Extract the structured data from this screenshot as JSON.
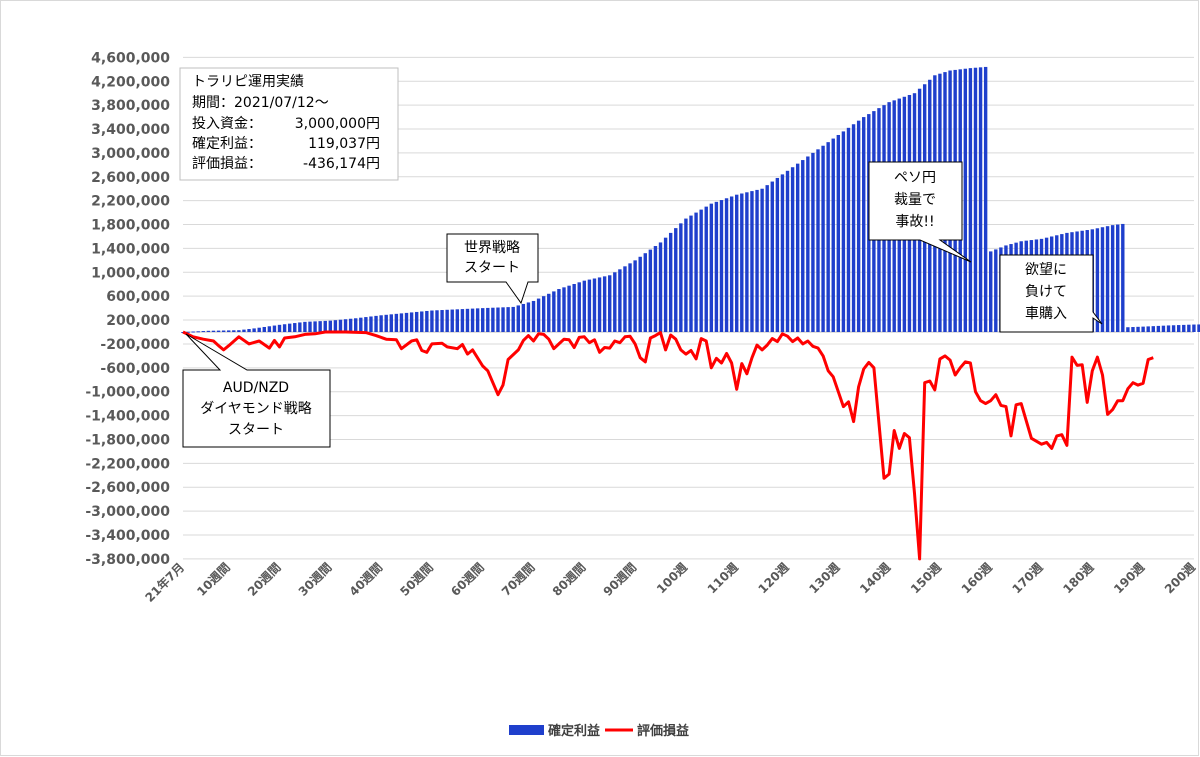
{
  "info_box": {
    "lines": [
      {
        "label": "トラリピ運用実績",
        "value": ""
      },
      {
        "label": "期間：2021/07/12～",
        "value": ""
      },
      {
        "label": "投入資金：",
        "value": "3,000,000円"
      },
      {
        "label": "確定利益：",
        "value": "119,037円"
      },
      {
        "label": "評価損益：",
        "value": "-436,174円"
      }
    ]
  },
  "annotations": [
    {
      "id": "audnzd",
      "lines": [
        "AUD/NZD",
        "ダイヤモンド戦略",
        "スタート"
      ],
      "week": 1
    },
    {
      "id": "sekai",
      "lines": [
        "世界戦略",
        "スタート"
      ],
      "week": 69
    },
    {
      "id": "peso",
      "lines": [
        "ペソ円",
        "裁量で",
        "事故!!"
      ],
      "week": 159
    },
    {
      "id": "car",
      "lines": [
        "欲望に",
        "負けて",
        "車購入"
      ],
      "week": 188
    }
  ],
  "chart_data": {
    "type": "bar+line",
    "title": "",
    "xlabel": "",
    "ylabel": "",
    "ylim": [
      -4000000,
      4600000
    ],
    "y_ticks": [
      4600000,
      4200000,
      3800000,
      3400000,
      3000000,
      2600000,
      2200000,
      1800000,
      1400000,
      1000000,
      600000,
      200000,
      -200000,
      -600000,
      -1000000,
      -1400000,
      -1800000,
      -2200000,
      -2600000,
      -3000000,
      -3400000,
      -3800000
    ],
    "y_tick_labels": [
      "4,600,000",
      "4,200,000",
      "3,800,000",
      "3,400,000",
      "3,000,000",
      "2,600,000",
      "2,200,000",
      "1,800,000",
      "1,400,000",
      "1,000,000",
      "600,000",
      "200,000",
      "-200,000",
      "-600,000",
      "-1,000,000",
      "-1,400,000",
      "-1,800,000",
      "-2,200,000",
      "-2,600,000",
      "-3,000,000",
      "-3,400,000",
      "-3,800,000"
    ],
    "x_tick_labels": [
      {
        "week": 1,
        "label": "21年7月"
      },
      {
        "week": 10,
        "label": "10週間"
      },
      {
        "week": 20,
        "label": "20週間"
      },
      {
        "week": 30,
        "label": "30週間"
      },
      {
        "week": 40,
        "label": "40週間"
      },
      {
        "week": 50,
        "label": "50週間"
      },
      {
        "week": 60,
        "label": "60週間"
      },
      {
        "week": 70,
        "label": "70週間"
      },
      {
        "week": 80,
        "label": "80週間"
      },
      {
        "week": 90,
        "label": "90週間"
      },
      {
        "week": 100,
        "label": "100週"
      },
      {
        "week": 110,
        "label": "110週"
      },
      {
        "week": 120,
        "label": "120週"
      },
      {
        "week": 130,
        "label": "130週"
      },
      {
        "week": 140,
        "label": "140週"
      },
      {
        "week": 150,
        "label": "150週"
      },
      {
        "week": 160,
        "label": "160週"
      },
      {
        "week": 170,
        "label": "170週"
      },
      {
        "week": 180,
        "label": "180週"
      },
      {
        "week": 190,
        "label": "190週"
      },
      {
        "week": 200,
        "label": "200週"
      }
    ],
    "legend_position": "bottom",
    "series": [
      {
        "name": "確定利益",
        "kind": "bar",
        "color": "#1f3fcc",
        "anchors": [
          [
            1,
            0
          ],
          [
            6,
            20000
          ],
          [
            12,
            30000
          ],
          [
            15,
            60000
          ],
          [
            20,
            120000
          ],
          [
            25,
            170000
          ],
          [
            30,
            190000
          ],
          [
            35,
            230000
          ],
          [
            40,
            280000
          ],
          [
            45,
            320000
          ],
          [
            50,
            360000
          ],
          [
            55,
            380000
          ],
          [
            60,
            400000
          ],
          [
            66,
            420000
          ],
          [
            70,
            520000
          ],
          [
            75,
            720000
          ],
          [
            80,
            860000
          ],
          [
            85,
            950000
          ],
          [
            90,
            1200000
          ],
          [
            95,
            1500000
          ],
          [
            100,
            1900000
          ],
          [
            105,
            2150000
          ],
          [
            110,
            2300000
          ],
          [
            115,
            2400000
          ],
          [
            120,
            2700000
          ],
          [
            125,
            3000000
          ],
          [
            130,
            3300000
          ],
          [
            135,
            3600000
          ],
          [
            140,
            3850000
          ],
          [
            145,
            4000000
          ],
          [
            149,
            4300000
          ],
          [
            152,
            4380000
          ],
          [
            156,
            4420000
          ],
          [
            159,
            4440000
          ],
          [
            160,
            1350000
          ],
          [
            163,
            1450000
          ],
          [
            166,
            1520000
          ],
          [
            170,
            1560000
          ],
          [
            175,
            1660000
          ],
          [
            180,
            1720000
          ],
          [
            184,
            1790000
          ],
          [
            186,
            1810000
          ],
          [
            187,
            80000
          ],
          [
            190,
            90000
          ],
          [
            195,
            110000
          ],
          [
            200,
            125000
          ],
          [
            204,
            130000
          ]
        ]
      },
      {
        "name": "評価損益",
        "kind": "line",
        "color": "#ff0000",
        "points": [
          [
            1,
            0
          ],
          [
            3,
            -80000
          ],
          [
            5,
            -120000
          ],
          [
            7,
            -150000
          ],
          [
            8,
            -230000
          ],
          [
            9,
            -300000
          ],
          [
            10,
            -230000
          ],
          [
            12,
            -80000
          ],
          [
            14,
            -200000
          ],
          [
            16,
            -150000
          ],
          [
            18,
            -270000
          ],
          [
            19,
            -140000
          ],
          [
            20,
            -250000
          ],
          [
            21,
            -100000
          ],
          [
            23,
            -80000
          ],
          [
            25,
            -40000
          ],
          [
            27,
            -30000
          ],
          [
            29,
            0
          ],
          [
            33,
            0
          ],
          [
            37,
            -10000
          ],
          [
            39,
            -60000
          ],
          [
            41,
            -120000
          ],
          [
            43,
            -130000
          ],
          [
            44,
            -280000
          ],
          [
            46,
            -150000
          ],
          [
            47,
            -130000
          ],
          [
            48,
            -310000
          ],
          [
            49,
            -340000
          ],
          [
            50,
            -200000
          ],
          [
            52,
            -190000
          ],
          [
            53,
            -250000
          ],
          [
            55,
            -280000
          ],
          [
            56,
            -210000
          ],
          [
            57,
            -370000
          ],
          [
            58,
            -300000
          ],
          [
            60,
            -570000
          ],
          [
            61,
            -650000
          ],
          [
            63,
            -1050000
          ],
          [
            64,
            -890000
          ],
          [
            65,
            -460000
          ],
          [
            67,
            -300000
          ],
          [
            68,
            -140000
          ],
          [
            69,
            -60000
          ],
          [
            70,
            -150000
          ],
          [
            71,
            -30000
          ],
          [
            72,
            -40000
          ],
          [
            73,
            -120000
          ],
          [
            74,
            -280000
          ],
          [
            75,
            -200000
          ],
          [
            76,
            -120000
          ],
          [
            77,
            -130000
          ],
          [
            78,
            -260000
          ],
          [
            79,
            -90000
          ],
          [
            80,
            -80000
          ],
          [
            81,
            -180000
          ],
          [
            82,
            -130000
          ],
          [
            83,
            -340000
          ],
          [
            84,
            -260000
          ],
          [
            85,
            -270000
          ],
          [
            86,
            -150000
          ],
          [
            87,
            -180000
          ],
          [
            88,
            -80000
          ],
          [
            89,
            -70000
          ],
          [
            90,
            -200000
          ],
          [
            91,
            -430000
          ],
          [
            92,
            -500000
          ],
          [
            93,
            -100000
          ],
          [
            94,
            -60000
          ],
          [
            95,
            -10000
          ],
          [
            96,
            -300000
          ],
          [
            97,
            -50000
          ],
          [
            98,
            -120000
          ],
          [
            99,
            -300000
          ],
          [
            100,
            -370000
          ],
          [
            101,
            -310000
          ],
          [
            102,
            -450000
          ],
          [
            103,
            -110000
          ],
          [
            104,
            -150000
          ],
          [
            105,
            -600000
          ],
          [
            106,
            -440000
          ],
          [
            107,
            -520000
          ],
          [
            108,
            -360000
          ],
          [
            109,
            -520000
          ],
          [
            110,
            -960000
          ],
          [
            111,
            -530000
          ],
          [
            112,
            -700000
          ],
          [
            113,
            -430000
          ],
          [
            114,
            -220000
          ],
          [
            115,
            -300000
          ],
          [
            116,
            -220000
          ],
          [
            117,
            -110000
          ],
          [
            118,
            -160000
          ],
          [
            119,
            -30000
          ],
          [
            120,
            -70000
          ],
          [
            121,
            -160000
          ],
          [
            122,
            -100000
          ],
          [
            123,
            -200000
          ],
          [
            124,
            -150000
          ],
          [
            125,
            -240000
          ],
          [
            126,
            -270000
          ],
          [
            127,
            -400000
          ],
          [
            128,
            -650000
          ],
          [
            129,
            -750000
          ],
          [
            130,
            -1000000
          ],
          [
            131,
            -1250000
          ],
          [
            132,
            -1170000
          ],
          [
            133,
            -1500000
          ],
          [
            134,
            -920000
          ],
          [
            135,
            -620000
          ],
          [
            136,
            -510000
          ],
          [
            137,
            -600000
          ],
          [
            139,
            -2450000
          ],
          [
            140,
            -2380000
          ],
          [
            141,
            -1650000
          ],
          [
            142,
            -1950000
          ],
          [
            143,
            -1700000
          ],
          [
            144,
            -1770000
          ],
          [
            145,
            -2700000
          ],
          [
            146,
            -3800000
          ],
          [
            147,
            -850000
          ],
          [
            148,
            -820000
          ],
          [
            149,
            -970000
          ],
          [
            150,
            -450000
          ],
          [
            151,
            -400000
          ],
          [
            152,
            -470000
          ],
          [
            153,
            -720000
          ],
          [
            154,
            -600000
          ],
          [
            155,
            -500000
          ],
          [
            156,
            -520000
          ],
          [
            157,
            -1000000
          ],
          [
            158,
            -1150000
          ],
          [
            159,
            -1200000
          ],
          [
            160,
            -1150000
          ],
          [
            161,
            -1050000
          ],
          [
            162,
            -1230000
          ],
          [
            163,
            -1250000
          ],
          [
            164,
            -1740000
          ],
          [
            165,
            -1220000
          ],
          [
            166,
            -1200000
          ],
          [
            168,
            -1780000
          ],
          [
            170,
            -1880000
          ],
          [
            171,
            -1850000
          ],
          [
            172,
            -1950000
          ],
          [
            173,
            -1740000
          ],
          [
            174,
            -1720000
          ],
          [
            175,
            -1900000
          ],
          [
            176,
            -420000
          ],
          [
            177,
            -560000
          ],
          [
            178,
            -550000
          ],
          [
            179,
            -1180000
          ],
          [
            180,
            -650000
          ],
          [
            181,
            -420000
          ],
          [
            182,
            -720000
          ],
          [
            183,
            -1380000
          ],
          [
            184,
            -1300000
          ],
          [
            185,
            -1150000
          ],
          [
            186,
            -1150000
          ],
          [
            187,
            -950000
          ],
          [
            188,
            -850000
          ],
          [
            189,
            -890000
          ],
          [
            190,
            -860000
          ],
          [
            191,
            -460000
          ],
          [
            192,
            -430000
          ]
        ]
      }
    ]
  }
}
